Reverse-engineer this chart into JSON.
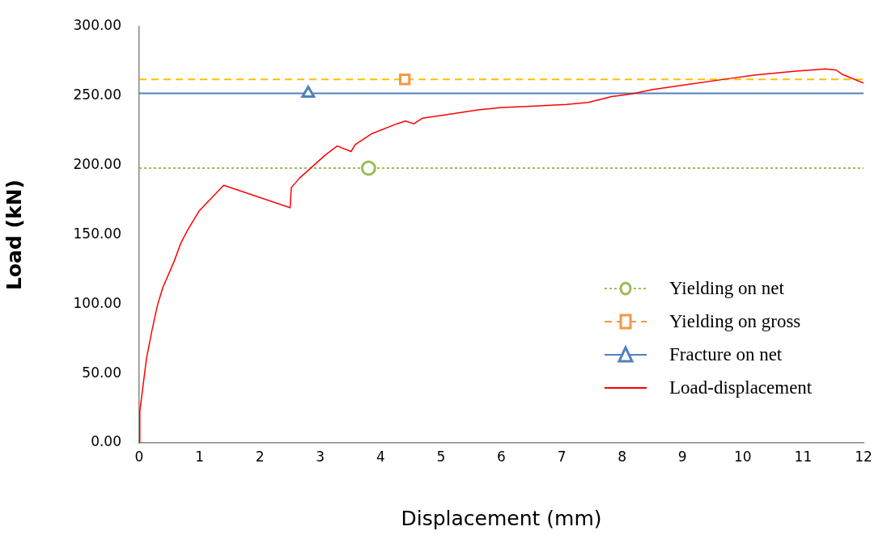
{
  "chart_data": {
    "type": "line",
    "xlabel": "Displacement (mm)",
    "ylabel": "Load (kN)",
    "xlim": [
      0,
      12
    ],
    "xticks": [
      0,
      1,
      2,
      3,
      4,
      5,
      6,
      7,
      8,
      9,
      10,
      11,
      12
    ],
    "ylim": [
      0,
      300
    ],
    "yticks": [
      {
        "value": 0,
        "label": "0.00"
      },
      {
        "value": 50,
        "label": "50.00"
      },
      {
        "value": 100,
        "label": "100.00"
      },
      {
        "value": 150,
        "label": "150.00"
      },
      {
        "value": 200,
        "label": "200.00"
      },
      {
        "value": 250,
        "label": "250.00"
      },
      {
        "value": 300,
        "label": "300.00"
      }
    ],
    "grid": false,
    "legend": "right",
    "ref_lines": [
      {
        "axis": "y",
        "value": 198,
        "color": "#9bbb59",
        "line_style": "dotted"
      },
      {
        "axis": "y",
        "value": 262,
        "color": "#ffc000",
        "line_style": "dashed"
      },
      {
        "axis": "y",
        "value": 252,
        "color": "#4f81bd",
        "line_style": "solid"
      }
    ],
    "series": [
      {
        "name": "Yielding on net",
        "color": "#9bbb59",
        "x": [
          3.8
        ],
        "values": [
          198
        ],
        "marker": "circle",
        "line_style": "dotted"
      },
      {
        "name": "Yielding on gross",
        "color": "#f79646",
        "x": [
          4.4
        ],
        "values": [
          262
        ],
        "marker": "square",
        "line_style": "dashed"
      },
      {
        "name": "Fracture on net",
        "color": "#4f81bd",
        "x": [
          2.8
        ],
        "values": [
          252
        ],
        "marker": "triangle",
        "line_style": "solid"
      },
      {
        "name": "Load-displacement",
        "color": "#ff0000",
        "marker": "none",
        "line_style": "solid",
        "x": [
          0,
          0.01,
          0.12,
          0.21,
          0.3,
          0.39,
          0.58,
          0.69,
          0.81,
          0.99,
          1.23,
          1.4,
          2.5,
          2.52,
          2.66,
          2.84,
          3.07,
          3.28,
          3.51,
          3.58,
          3.86,
          4.27,
          4.41,
          4.55,
          4.69,
          5.15,
          5.61,
          6.01,
          6.41,
          7.08,
          7.44,
          7.84,
          8.17,
          8.51,
          9.09,
          9.76,
          10.21,
          10.88,
          11.37,
          11.55,
          11.64,
          12
        ],
        "values": [
          0,
          22.7,
          60.7,
          80.7,
          98.8,
          111.8,
          131,
          144,
          154,
          167,
          178,
          185.7,
          169.5,
          184,
          191,
          198,
          207,
          214,
          210,
          215,
          223,
          230,
          232,
          230,
          234,
          237,
          240,
          241.7,
          242.5,
          244,
          245.4,
          249.7,
          251.6,
          254.7,
          258.4,
          262.5,
          265.2,
          268,
          269.5,
          268.7,
          265.8,
          259.4
        ]
      }
    ]
  }
}
